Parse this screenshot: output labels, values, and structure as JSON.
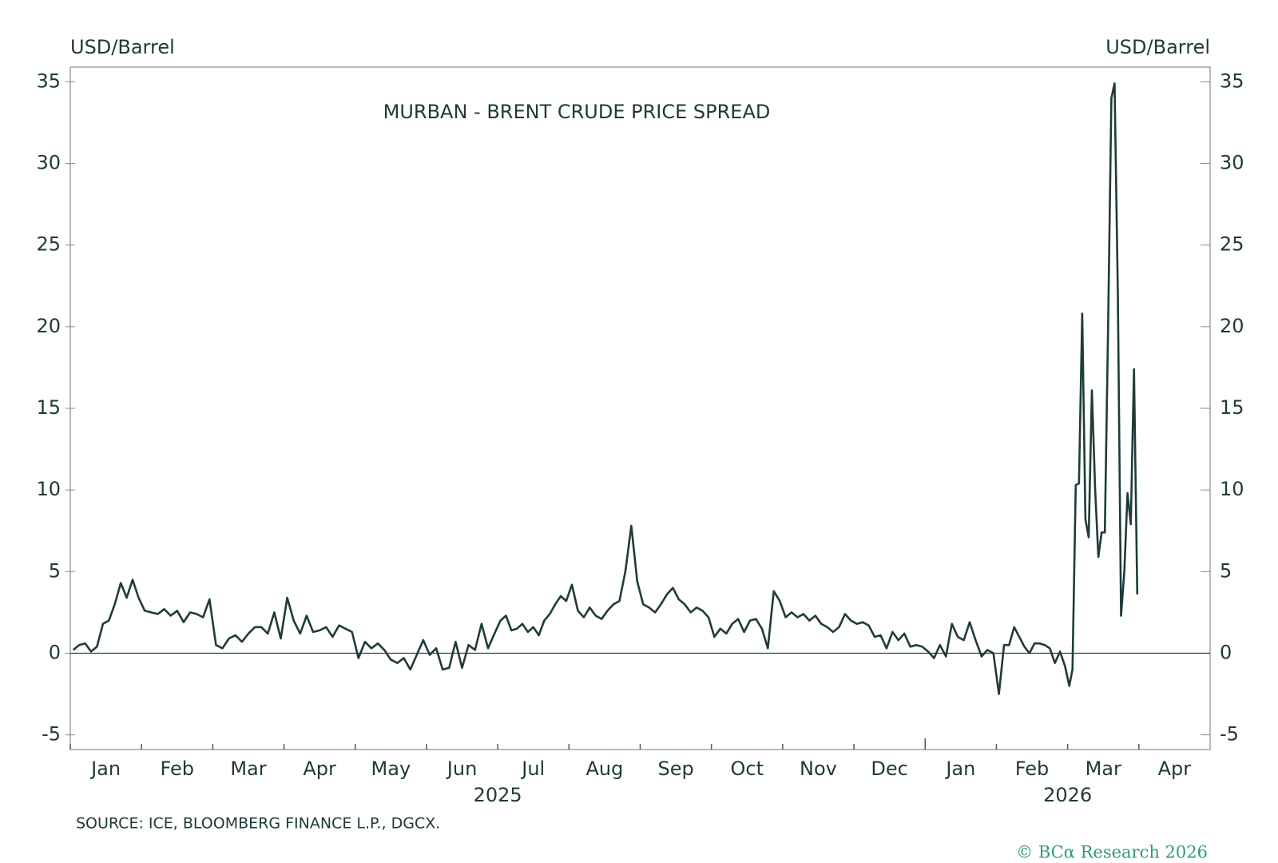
{
  "chart_data": {
    "type": "line",
    "title": "MURBAN - BRENT CRUDE PRICE SPREAD",
    "y_label": "USD/Barrel",
    "y2_label": "USD/Barrel",
    "source": "SOURCE: ICE, BLOOMBERG FINANCE L.P., DGCX.",
    "credit": "© BCα Research 2026",
    "x": [
      "2025-01",
      "2025-01",
      "2025-01",
      "2025-01",
      "2025-01",
      "2025-01",
      "2025-01",
      "2025-01",
      "2025-01",
      "2025-01",
      "2025-01",
      "2025-01",
      "2025-02",
      "2025-02",
      "2025-02",
      "2025-02",
      "2025-02",
      "2025-02",
      "2025-02",
      "2025-02",
      "2025-02",
      "2025-02",
      "2025-02",
      "2025-03",
      "2025-03",
      "2025-03",
      "2025-03",
      "2025-03",
      "2025-03",
      "2025-03",
      "2025-03",
      "2025-03",
      "2025-03",
      "2025-03",
      "2025-04",
      "2025-04",
      "2025-04",
      "2025-04",
      "2025-04",
      "2025-04",
      "2025-04",
      "2025-04",
      "2025-04",
      "2025-04",
      "2025-04",
      "2025-05",
      "2025-05",
      "2025-05",
      "2025-05",
      "2025-05",
      "2025-05",
      "2025-05",
      "2025-05",
      "2025-05",
      "2025-05",
      "2025-05",
      "2025-06",
      "2025-06",
      "2025-06",
      "2025-06",
      "2025-06",
      "2025-06",
      "2025-06",
      "2025-06",
      "2025-06",
      "2025-06",
      "2025-06",
      "2025-07",
      "2025-07",
      "2025-07",
      "2025-07",
      "2025-07",
      "2025-07",
      "2025-07",
      "2025-07",
      "2025-07",
      "2025-07",
      "2025-07",
      "2025-07",
      "2025-07",
      "2025-08",
      "2025-08",
      "2025-08",
      "2025-08",
      "2025-08",
      "2025-08",
      "2025-08",
      "2025-08",
      "2025-08",
      "2025-08",
      "2025-08",
      "2025-08",
      "2025-09",
      "2025-09",
      "2025-09",
      "2025-09",
      "2025-09",
      "2025-09",
      "2025-09",
      "2025-09",
      "2025-09",
      "2025-09",
      "2025-09",
      "2025-09",
      "2025-10",
      "2025-10",
      "2025-10",
      "2025-10",
      "2025-10",
      "2025-10",
      "2025-10",
      "2025-10",
      "2025-10",
      "2025-10",
      "2025-10",
      "2025-10",
      "2025-11",
      "2025-11",
      "2025-11",
      "2025-11",
      "2025-11",
      "2025-11",
      "2025-11",
      "2025-11",
      "2025-11",
      "2025-11",
      "2025-11",
      "2025-11",
      "2025-12",
      "2025-12",
      "2025-12",
      "2025-12",
      "2025-12",
      "2025-12",
      "2025-12",
      "2025-12",
      "2025-12",
      "2025-12",
      "2025-12",
      "2025-12",
      "2026-01",
      "2026-01",
      "2026-01",
      "2026-01",
      "2026-01",
      "2026-01",
      "2026-01",
      "2026-01",
      "2026-01",
      "2026-01",
      "2026-01",
      "2026-01",
      "2026-02",
      "2026-02",
      "2026-02",
      "2026-02",
      "2026-02",
      "2026-02",
      "2026-02",
      "2026-02",
      "2026-02",
      "2026-02",
      "2026-02",
      "2026-02",
      "2026-02",
      "2026-02",
      "2026-03",
      "2026-03",
      "2026-03",
      "2026-03",
      "2026-03",
      "2026-03",
      "2026-03",
      "2026-03",
      "2026-03",
      "2026-03",
      "2026-03",
      "2026-03",
      "2026-03",
      "2026-03",
      "2026-03",
      "2026-03",
      "2026-03",
      "2026-03",
      "2026-03",
      "2026-03",
      "2026-03",
      "2026-03"
    ],
    "series": [
      {
        "name": "Murban - Brent spread",
        "color": "#1f3b3a",
        "values": [
          0.2,
          0.5,
          0.6,
          0.1,
          0.4,
          1.8,
          2.0,
          3.0,
          4.3,
          3.4,
          4.5,
          3.4,
          2.6,
          2.5,
          2.4,
          2.7,
          2.3,
          2.6,
          1.9,
          2.5,
          2.4,
          2.2,
          3.3,
          0.5,
          0.3,
          0.9,
          1.1,
          0.7,
          1.2,
          1.6,
          1.6,
          1.2,
          2.5,
          0.9,
          3.4,
          2.0,
          1.2,
          2.3,
          1.3,
          1.4,
          1.6,
          1.0,
          1.7,
          1.5,
          1.3,
          -0.3,
          0.7,
          0.3,
          0.6,
          0.2,
          -0.4,
          -0.6,
          -0.3,
          -1.0,
          -0.1,
          0.8,
          -0.1,
          0.3,
          -1.0,
          -0.9,
          0.7,
          -0.9,
          0.5,
          0.2,
          1.8,
          0.3,
          1.2,
          2.0,
          2.3,
          1.4,
          1.5,
          1.8,
          1.3,
          1.6,
          1.1,
          2.0,
          2.4,
          3.0,
          3.5,
          3.2,
          4.2,
          2.6,
          2.2,
          2.8,
          2.3,
          2.1,
          2.6,
          3.0,
          3.2,
          5.0,
          7.8,
          4.4,
          3.0,
          2.8,
          2.5,
          3.0,
          3.6,
          4.0,
          3.3,
          3.0,
          2.5,
          2.8,
          2.6,
          2.2,
          1.0,
          1.5,
          1.2,
          1.8,
          2.1,
          1.3,
          2.0,
          2.1,
          1.5,
          0.3,
          3.8,
          3.2,
          2.2,
          2.5,
          2.2,
          2.4,
          2.0,
          2.3,
          1.8,
          1.6,
          1.3,
          1.6,
          2.4,
          2.0,
          1.8,
          1.9,
          1.7,
          1.0,
          1.1,
          0.3,
          1.3,
          0.8,
          1.2,
          0.4,
          0.5,
          0.4,
          0.1,
          -0.3,
          0.5,
          -0.2,
          1.8,
          1.0,
          0.8,
          1.9,
          0.8,
          -0.2,
          0.2,
          0.0,
          -2.5,
          0.5,
          0.5,
          1.6,
          1.0,
          0.4,
          0.0,
          0.6,
          0.6,
          0.5,
          0.3,
          -0.6,
          0.1,
          -0.8,
          -2.0,
          -1.0,
          10.3,
          10.4,
          20.8,
          8.2,
          7.1,
          16.1,
          10.0,
          5.9,
          7.4,
          7.4,
          20.0,
          34.0,
          34.9,
          22.0,
          2.3,
          5.0,
          9.8,
          7.9,
          17.4,
          3.6
        ]
      }
    ],
    "xlim": [
      "2025-01",
      "2026-04"
    ],
    "xticks": [
      {
        "value": "2025-01",
        "label": "Jan"
      },
      {
        "value": "2025-02",
        "label": "Feb"
      },
      {
        "value": "2025-03",
        "label": "Mar"
      },
      {
        "value": "2025-04",
        "label": "Apr"
      },
      {
        "value": "2025-05",
        "label": "May"
      },
      {
        "value": "2025-06",
        "label": "Jun"
      },
      {
        "value": "2025-07",
        "label": "Jul"
      },
      {
        "value": "2025-08",
        "label": "Aug"
      },
      {
        "value": "2025-09",
        "label": "Sep"
      },
      {
        "value": "2025-10",
        "label": "Oct"
      },
      {
        "value": "2025-11",
        "label": "Nov"
      },
      {
        "value": "2025-12",
        "label": "Dec"
      },
      {
        "value": "2026-01",
        "label": "Jan"
      },
      {
        "value": "2026-02",
        "label": "Feb"
      },
      {
        "value": "2026-03",
        "label": "Mar"
      },
      {
        "value": "2026-04",
        "label": "Apr"
      }
    ],
    "years": [
      "2025",
      "2026"
    ],
    "ylim": [
      -5.9,
      35.9
    ],
    "yticks": [
      -5,
      0,
      5,
      10,
      15,
      20,
      25,
      30,
      35
    ],
    "y2lim": [
      -5.9,
      35.9
    ],
    "y2ticks": [
      -5,
      0,
      5,
      10,
      15,
      20,
      25,
      30,
      35
    ],
    "zero_line": true
  }
}
